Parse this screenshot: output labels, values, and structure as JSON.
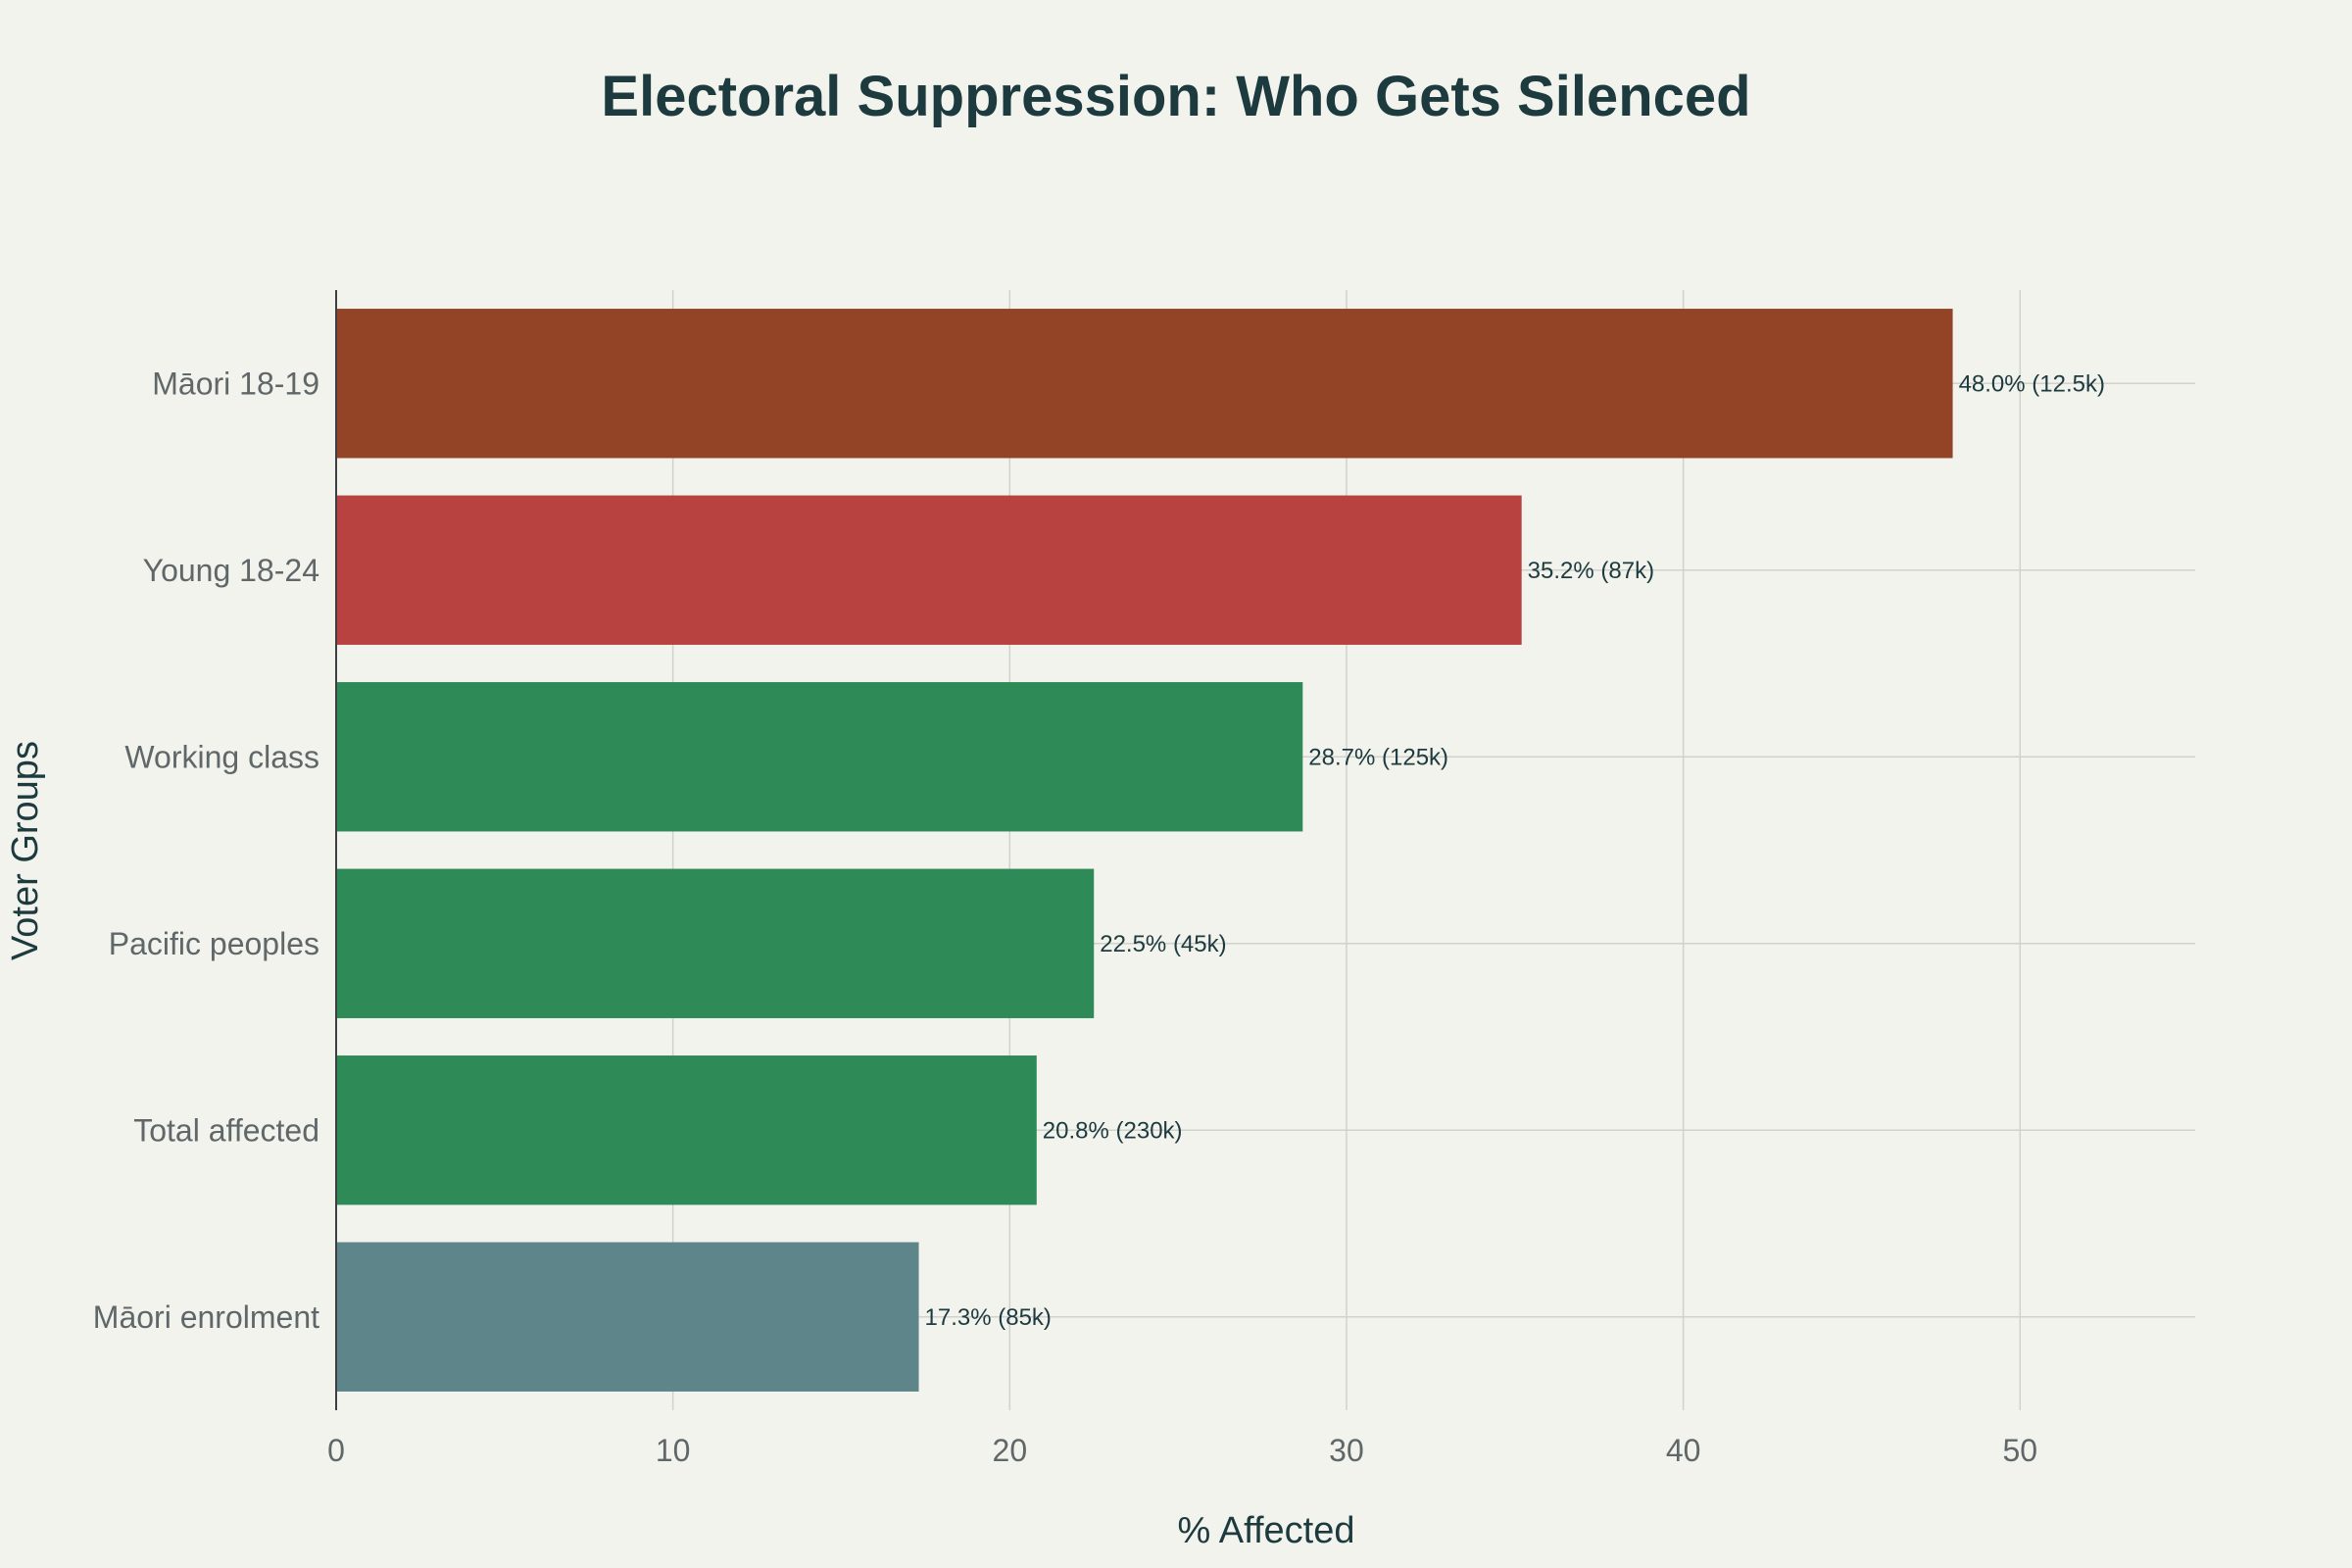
{
  "chart_data": {
    "type": "bar",
    "orientation": "horizontal",
    "title": "Electoral Suppression: Who Gets Silenced",
    "xlabel": "% Affected",
    "ylabel": "Voter Groups",
    "xlim": [
      0,
      55.2
    ],
    "xticks": [
      0,
      10,
      20,
      30,
      40,
      50
    ],
    "grid": true,
    "legend": "none",
    "categories": [
      "Māori 18-19",
      "Young 18-24",
      "Working class",
      "Pacific peoples",
      "Total affected",
      "Māori enrolment"
    ],
    "values": [
      48.0,
      35.2,
      28.7,
      22.5,
      20.8,
      17.3
    ],
    "data_labels": [
      "48.0% (12.5k)",
      "35.2% (87k)",
      "28.7% (125k)",
      "22.5% (45k)",
      "20.8% (230k)",
      "17.3% (85k)"
    ],
    "colors": [
      "#944426",
      "#b84240",
      "#2e8a57",
      "#2e8a57",
      "#2e8a57",
      "#5e858a"
    ]
  }
}
